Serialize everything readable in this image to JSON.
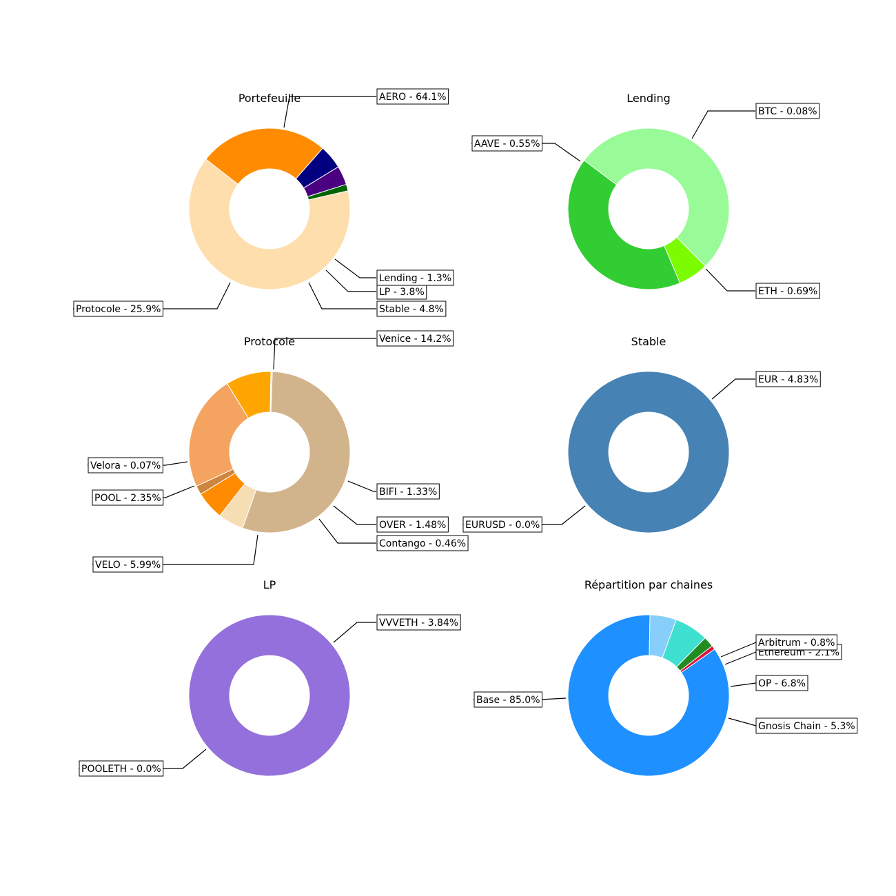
{
  "chart_data": [
    {
      "type": "pie",
      "donut": true,
      "title": "Portefeuille",
      "slices": [
        {
          "label": "AERO - 64.1%",
          "value": 64.1,
          "color": "#FFDEAD"
        },
        {
          "label": "Protocole - 25.9%",
          "value": 25.9,
          "color": "#FF8C00"
        },
        {
          "label": "Stable - 4.8%",
          "value": 4.8,
          "color": "#000080"
        },
        {
          "label": "LP - 3.8%",
          "value": 3.8,
          "color": "#4B0082"
        },
        {
          "label": "Lending - 1.3%",
          "value": 1.3,
          "color": "#006400"
        }
      ]
    },
    {
      "type": "pie",
      "donut": true,
      "title": "Lending",
      "slices": [
        {
          "label": "AAVE - 0.55%",
          "value": 0.55,
          "color": "#32CD32"
        },
        {
          "label": "BTC - 0.08%",
          "value": 0.08,
          "color": "#7CFC00"
        },
        {
          "label": "ETH - 0.69%",
          "value": 0.69,
          "color": "#98FB98"
        }
      ]
    },
    {
      "type": "pie",
      "donut": true,
      "title": "Protocole",
      "slices": [
        {
          "label": "Venice - 14.2%",
          "value": 14.2,
          "color": "#D2B48C"
        },
        {
          "label": "BIFI - 1.33%",
          "value": 1.33,
          "color": "#F5DEB3"
        },
        {
          "label": "OVER - 1.48%",
          "value": 1.48,
          "color": "#FF8C00"
        },
        {
          "label": "Contango - 0.46%",
          "value": 0.46,
          "color": "#CD853F"
        },
        {
          "label": "VELO - 5.99%",
          "value": 5.99,
          "color": "#F4A460"
        },
        {
          "label": "POOL - 2.35%",
          "value": 2.35,
          "color": "#FFA500"
        },
        {
          "label": "Velora - 0.07%",
          "value": 0.07,
          "color": "#FFE4B5"
        }
      ]
    },
    {
      "type": "pie",
      "donut": true,
      "title": "Stable",
      "slices": [
        {
          "label": "EUR - 4.83%",
          "value": 4.83,
          "color": "#4682B4"
        },
        {
          "label": "EURUSD - 0.0%",
          "value": 0.0,
          "color": "#4682B4"
        }
      ]
    },
    {
      "type": "pie",
      "donut": true,
      "title": "LP",
      "slices": [
        {
          "label": "VVVETH - 3.84%",
          "value": 3.84,
          "color": "#9370DB"
        },
        {
          "label": "POOLETH - 0.0%",
          "value": 0.0,
          "color": "#9370DB"
        }
      ]
    },
    {
      "type": "pie",
      "donut": true,
      "title": "Répartition par chaines",
      "slices": [
        {
          "label": "Base - 85.0%",
          "value": 85.0,
          "color": "#1E90FF"
        },
        {
          "label": "Gnosis Chain - 5.3%",
          "value": 5.3,
          "color": "#87CEFA"
        },
        {
          "label": "OP - 6.8%",
          "value": 6.8,
          "color": "#40E0D0"
        },
        {
          "label": "Ethereum - 2.1%",
          "value": 2.1,
          "color": "#228B22"
        },
        {
          "label": "Arbitrum - 0.8%",
          "value": 0.8,
          "color": "#DC143C"
        }
      ]
    }
  ]
}
